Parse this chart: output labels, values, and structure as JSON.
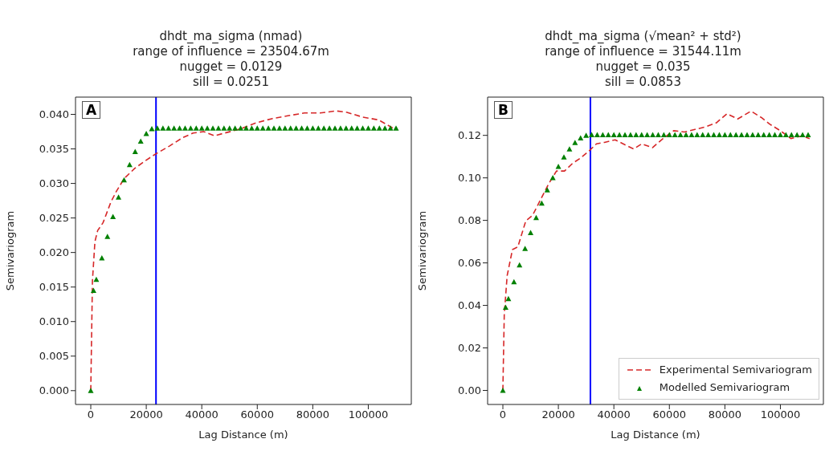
{
  "chart_data": [
    {
      "type": "line",
      "title": "dhdt_ma_sigma (nmad)\nrange of influence = 23504.67m\nnugget = 0.0129\nsill = 0.0251",
      "xlabel": "Lag Distance (m)",
      "ylabel": "Semivariogram",
      "annotations": [
        "A"
      ],
      "xlim": [
        -5500,
        115500
      ],
      "xticks": [
        0,
        20000,
        40000,
        60000,
        80000,
        100000
      ],
      "ylim": [
        -0.002,
        0.0425
      ],
      "yticks": [
        {
          "value": 0,
          "label": "0.000"
        },
        {
          "value": 0.005,
          "label": "0.005"
        },
        {
          "value": 0.01,
          "label": "0.010"
        },
        {
          "value": 0.015,
          "label": "0.015"
        },
        {
          "value": 0.02,
          "label": "0.020"
        },
        {
          "value": 0.025,
          "label": "0.025"
        },
        {
          "value": 0.03,
          "label": "0.030"
        },
        {
          "value": 0.035,
          "label": "0.035"
        },
        {
          "value": 0.04,
          "label": "0.040"
        }
      ],
      "legend": false,
      "ref_lines": [
        {
          "axis": "x",
          "value": 23504.67,
          "color": "#0000ff"
        }
      ],
      "series": [
        {
          "color": "#d62728",
          "line_style": "dashed",
          "marker": "none",
          "x": [
            0,
            600,
            1500,
            2500,
            4400,
            7250,
            9150,
            12000,
            15900,
            19700,
            23500,
            28300,
            33000,
            36900,
            40700,
            44500,
            48300,
            54000,
            59800,
            65500,
            71000,
            77000,
            82700,
            88400,
            92300,
            98000,
            103700,
            109400
          ],
          "values": [
            0,
            0.0159,
            0.0216,
            0.0232,
            0.0243,
            0.0273,
            0.0288,
            0.0307,
            0.0322,
            0.0333,
            0.0343,
            0.0354,
            0.0366,
            0.0373,
            0.0375,
            0.0369,
            0.0373,
            0.0379,
            0.0388,
            0.0394,
            0.0398,
            0.0402,
            0.0402,
            0.0405,
            0.0403,
            0.0396,
            0.0392,
            0.0379
          ]
        },
        {
          "type": "scatter",
          "color": "#008000",
          "marker": "triangle",
          "x": [
            0,
            1000,
            2000,
            4000,
            6000,
            8000,
            10000,
            12000,
            14000,
            16000,
            18000,
            20000,
            22000,
            24000,
            26000,
            28000,
            30000,
            32000,
            34000,
            36000,
            38000,
            40000,
            42000,
            44000,
            46000,
            48000,
            50000,
            52000,
            54000,
            56000,
            58000,
            60000,
            62000,
            64000,
            66000,
            68000,
            70000,
            72000,
            74000,
            76000,
            78000,
            80000,
            82000,
            84000,
            86000,
            88000,
            90000,
            92000,
            94000,
            96000,
            98000,
            100000,
            102000,
            104000,
            106000,
            108000,
            110000
          ],
          "values": [
            0,
            0.0145,
            0.0161,
            0.0192,
            0.0223,
            0.0252,
            0.028,
            0.0305,
            0.0327,
            0.0346,
            0.0361,
            0.0372,
            0.0379,
            0.038,
            0.038,
            0.038,
            0.038,
            0.038,
            0.038,
            0.038,
            0.038,
            0.038,
            0.038,
            0.038,
            0.038,
            0.038,
            0.038,
            0.038,
            0.038,
            0.038,
            0.038,
            0.038,
            0.038,
            0.038,
            0.038,
            0.038,
            0.038,
            0.038,
            0.038,
            0.038,
            0.038,
            0.038,
            0.038,
            0.038,
            0.038,
            0.038,
            0.038,
            0.038,
            0.038,
            0.038,
            0.038,
            0.038,
            0.038,
            0.038,
            0.038,
            0.038,
            0.038
          ]
        }
      ]
    },
    {
      "type": "line",
      "title": "dhdt_ma_sigma (√mean² + std²)\nrange of influence = 31544.11m\nnugget = 0.035\nsill = 0.0853",
      "xlabel": "Lag Distance (m)",
      "ylabel": "Semivariogram",
      "annotations": [
        "B"
      ],
      "xlim": [
        -5500,
        115500
      ],
      "xticks": [
        0,
        20000,
        40000,
        60000,
        80000,
        100000
      ],
      "ylim": [
        -0.0066,
        0.138
      ],
      "yticks": [
        {
          "value": 0,
          "label": "0.00"
        },
        {
          "value": 0.02,
          "label": "0.02"
        },
        {
          "value": 0.04,
          "label": "0.04"
        },
        {
          "value": 0.06,
          "label": "0.06"
        },
        {
          "value": 0.08,
          "label": "0.08"
        },
        {
          "value": 0.1,
          "label": "0.10"
        },
        {
          "value": 0.12,
          "label": "0.12"
        }
      ],
      "legend": "bottom right",
      "ref_lines": [
        {
          "axis": "x",
          "value": 31544.11,
          "color": "#0000ff"
        }
      ],
      "series": [
        {
          "name": "Experimental Semivariogram",
          "color": "#d62728",
          "line_style": "dashed",
          "marker": "none",
          "x": [
            0,
            500,
            1540,
            3460,
            5380,
            8270,
            10660,
            12590,
            14500,
            16430,
            19310,
            22200,
            25080,
            27960,
            30840,
            33720,
            36600,
            40440,
            44280,
            47150,
            50040,
            53880,
            57720,
            61560,
            65400,
            69240,
            73090,
            76930,
            80770,
            84610,
            89410,
            93250,
            96130,
            99970,
            103810,
            107650,
            110530
          ],
          "values": [
            0,
            0.0356,
            0.054,
            0.0663,
            0.0675,
            0.0798,
            0.0823,
            0.0872,
            0.0921,
            0.097,
            0.1032,
            0.1032,
            0.1068,
            0.1093,
            0.1124,
            0.116,
            0.1167,
            0.1179,
            0.1154,
            0.1136,
            0.116,
            0.1142,
            0.1185,
            0.1222,
            0.1216,
            0.1228,
            0.124,
            0.1259,
            0.1302,
            0.1277,
            0.1314,
            0.1283,
            0.1253,
            0.1222,
            0.1185,
            0.1197,
            0.1185
          ]
        },
        {
          "name": "Modelled Semivariogram",
          "type": "scatter",
          "color": "#008000",
          "marker": "triangle",
          "x": [
            0,
            1000,
            2000,
            4000,
            6000,
            8000,
            10000,
            12000,
            14000,
            16000,
            18000,
            20000,
            22000,
            24000,
            26000,
            28000,
            30000,
            32000,
            34000,
            36000,
            38000,
            40000,
            42000,
            44000,
            46000,
            48000,
            50000,
            52000,
            54000,
            56000,
            58000,
            60000,
            62000,
            64000,
            66000,
            68000,
            70000,
            72000,
            74000,
            76000,
            78000,
            80000,
            82000,
            84000,
            86000,
            88000,
            90000,
            92000,
            94000,
            96000,
            98000,
            100000,
            102000,
            104000,
            106000,
            108000,
            110000
          ],
          "values": [
            0,
            0.0391,
            0.0431,
            0.0511,
            0.059,
            0.0667,
            0.0742,
            0.0813,
            0.0881,
            0.0943,
            0.1001,
            0.1053,
            0.1098,
            0.1136,
            0.1166,
            0.1187,
            0.12,
            0.1203,
            0.1203,
            0.1203,
            0.1203,
            0.1203,
            0.1203,
            0.1203,
            0.1203,
            0.1203,
            0.1203,
            0.1203,
            0.1203,
            0.1203,
            0.1203,
            0.1203,
            0.1203,
            0.1203,
            0.1203,
            0.1203,
            0.1203,
            0.1203,
            0.1203,
            0.1203,
            0.1203,
            0.1203,
            0.1203,
            0.1203,
            0.1203,
            0.1203,
            0.1203,
            0.1203,
            0.1203,
            0.1203,
            0.1203,
            0.1203,
            0.1203,
            0.1203,
            0.1203,
            0.1203,
            0.1203
          ]
        }
      ]
    }
  ]
}
